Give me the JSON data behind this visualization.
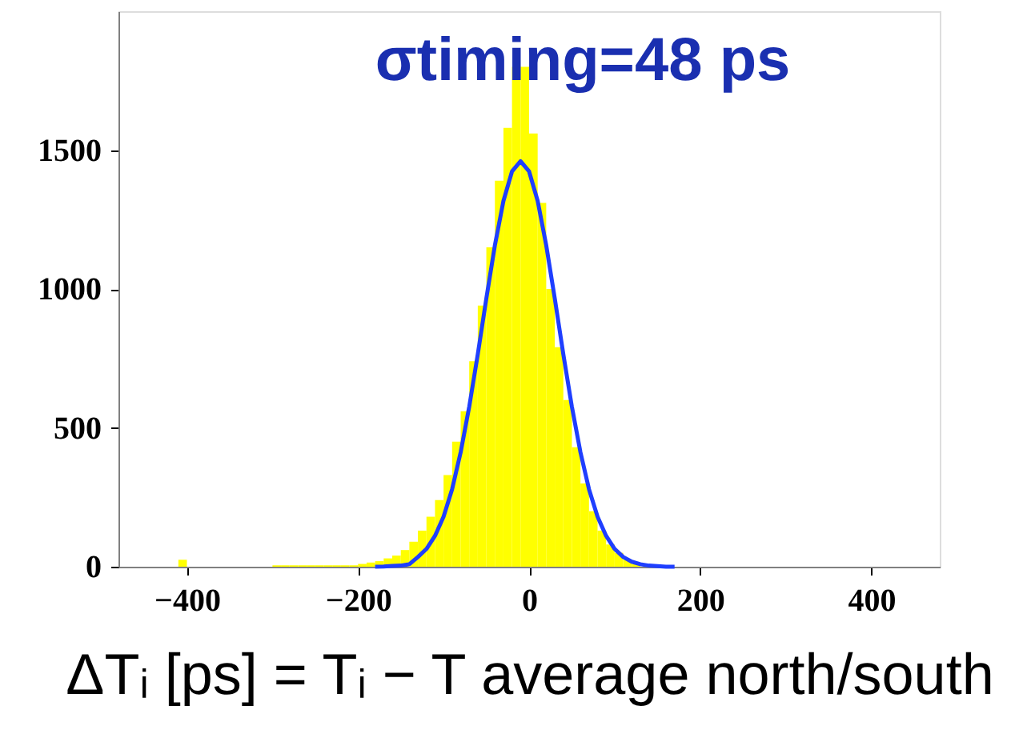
{
  "chart_data": {
    "type": "histogram",
    "title": "σtiming=48 ps",
    "xlabel": "ΔTᵢ [ps] = Tᵢ − T average north/south",
    "color": "#ffff00",
    "bins": [
      -410,
      -400,
      -390,
      -380,
      -370,
      -360,
      -350,
      -340,
      -330,
      -320,
      -310,
      -300,
      -290,
      -280,
      -270,
      -260,
      -250,
      -240,
      -230,
      -220,
      -210,
      -200,
      -190,
      -180,
      -170,
      -160,
      -150,
      -140,
      -130,
      -120,
      -110,
      -100,
      -90,
      -80,
      -70,
      -60,
      -50,
      -40,
      -30,
      -20,
      -10,
      0,
      10,
      20,
      30,
      40,
      50,
      60,
      70,
      80,
      90,
      100,
      110,
      120,
      130,
      140
    ],
    "values": [
      25,
      0,
      0,
      0,
      0,
      0,
      0,
      0,
      0,
      0,
      0,
      5,
      5,
      5,
      5,
      5,
      5,
      5,
      5,
      5,
      5,
      10,
      15,
      20,
      30,
      40,
      60,
      90,
      130,
      180,
      240,
      330,
      450,
      560,
      740,
      940,
      1150,
      1390,
      1580,
      1800,
      1800,
      1560,
      1310,
      1000,
      790,
      600,
      430,
      300,
      200,
      130,
      80,
      50,
      25,
      10,
      null
    ],
    "series": [
      {
        "type": "line",
        "color": "#1f3fff",
        "x": [
          -180,
          -170,
          -160,
          -150,
          -140,
          -130,
          -120,
          -110,
          -100,
          -90,
          -80,
          -70,
          -60,
          -50,
          -40,
          -30,
          -20,
          -10,
          0,
          10,
          20,
          30,
          40,
          50,
          60,
          70,
          80,
          90,
          100,
          110,
          120,
          130,
          140,
          150,
          160,
          170
        ],
        "values": [
          0,
          1,
          3,
          4,
          9,
          35,
          64,
          111,
          180,
          279,
          412,
          576,
          765,
          966,
          1157,
          1317,
          1423,
          1460,
          1423,
          1317,
          1157,
          966,
          765,
          576,
          412,
          279,
          180,
          111,
          64,
          35,
          18,
          9,
          4,
          2,
          0,
          0
        ]
      }
    ],
    "xlim": [
      -480,
      480
    ],
    "ylim": [
      0,
      2000
    ],
    "xticks": [
      -400,
      -200,
      0,
      200,
      400
    ],
    "yticks": [
      0,
      500,
      1000,
      1500
    ],
    "grid": false
  }
}
